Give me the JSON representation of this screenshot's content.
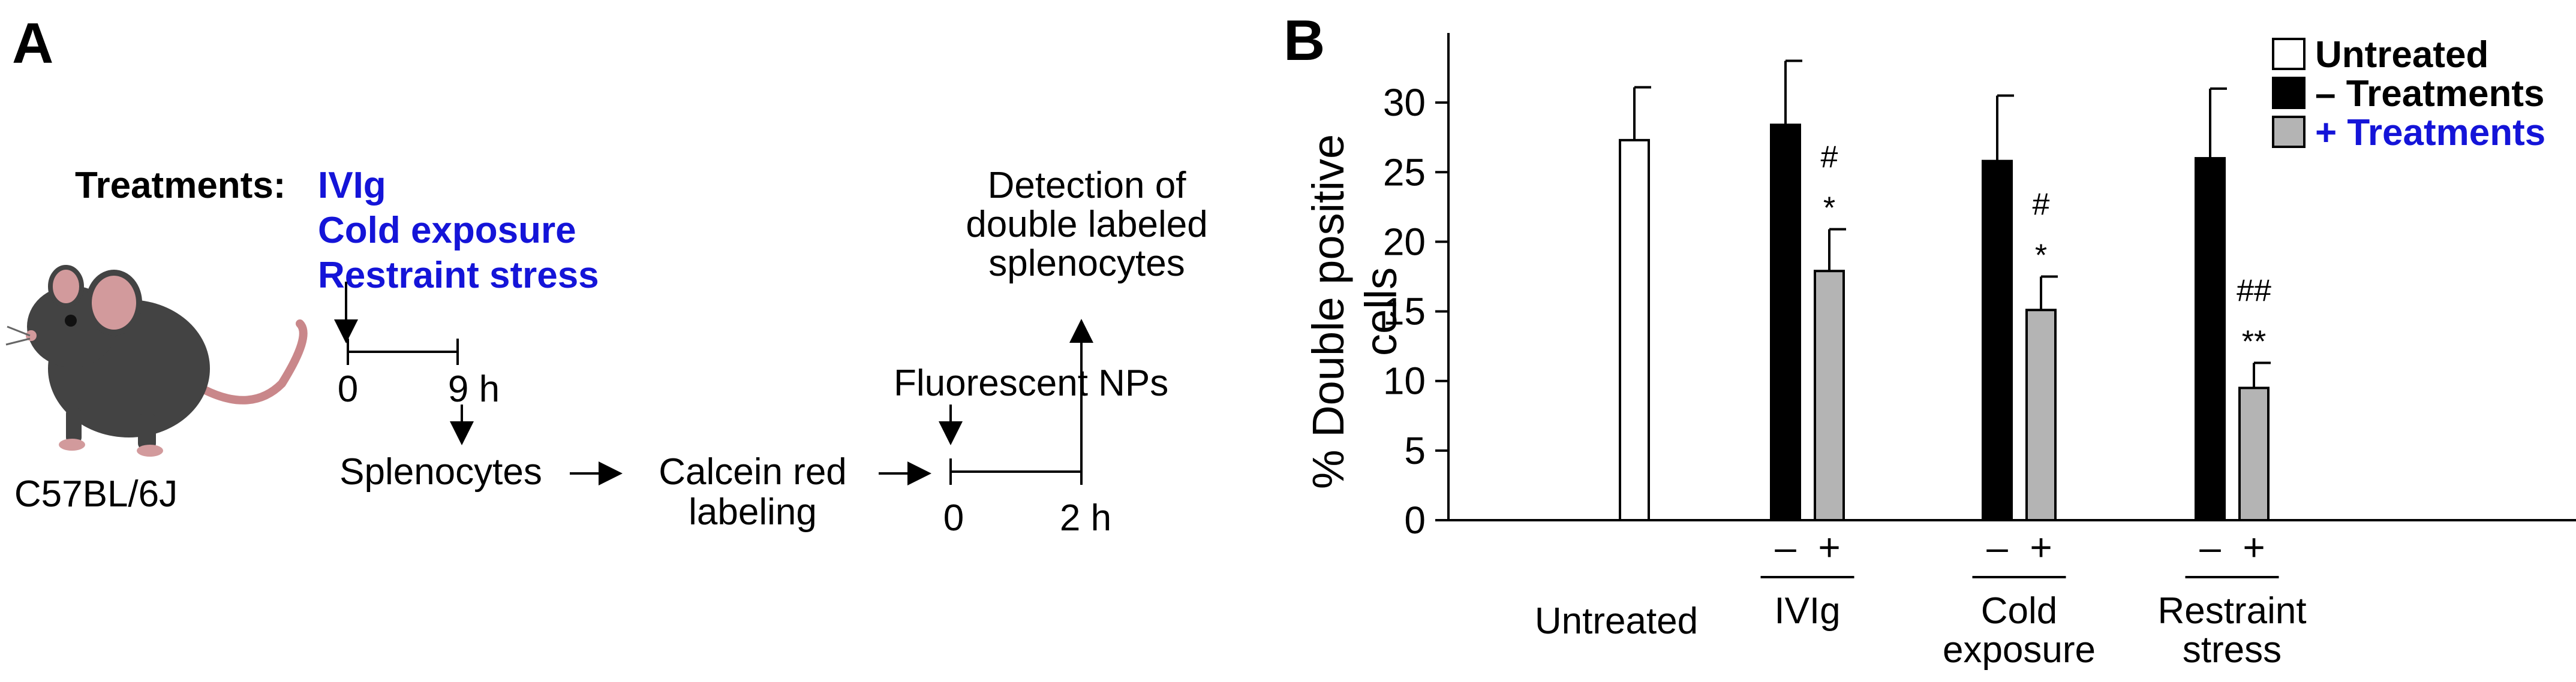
{
  "panel_a": {
    "letter": "A",
    "treatments_label": "Treatments:",
    "treatments": [
      "IVIg",
      "Cold exposure",
      "Restraint stress"
    ],
    "mouse_strain": "C57BL/6J",
    "timeline1": {
      "start": "0",
      "end": "9 h"
    },
    "step_splenocytes": "Splenocytes",
    "step_labeling_line1": "Calcein red",
    "step_labeling_line2": "labeling",
    "nps_label": "Fluorescent NPs",
    "timeline2": {
      "start": "0",
      "end": "2 h"
    },
    "detection_lines": [
      "Detection of",
      "double labeled",
      "splenocytes"
    ]
  },
  "panel_b": {
    "letter": "B",
    "ylabel_line1": "% Double positive",
    "ylabel_line2": "cells",
    "legend": [
      {
        "label": "Untreated",
        "color": "#ffffff"
      },
      {
        "label": "–  Treatments",
        "color": "#000000"
      },
      {
        "label": "+ Treatments",
        "color": "#b4b4b4"
      }
    ],
    "minus_sign": "–",
    "plus_sign": "+"
  },
  "chart_data": {
    "type": "bar",
    "ylim": [
      0,
      35
    ],
    "yticks": [
      0,
      5,
      10,
      15,
      20,
      25,
      30
    ],
    "groups": [
      {
        "label_lines": [
          "Untreated"
        ],
        "bars": [
          {
            "series": "Untreated",
            "value": 27.3,
            "error": 3.8,
            "sig": []
          }
        ]
      },
      {
        "label_lines": [
          "IVIg"
        ],
        "bars": [
          {
            "series": "– Treatments",
            "value": 28.4,
            "error": 4.6,
            "sig": []
          },
          {
            "series": "+ Treatments",
            "value": 17.9,
            "error": 3.0,
            "sig": [
              "#",
              "*"
            ]
          }
        ]
      },
      {
        "label_lines": [
          "Cold",
          "exposure"
        ],
        "bars": [
          {
            "series": "– Treatments",
            "value": 25.8,
            "error": 4.7,
            "sig": []
          },
          {
            "series": "+ Treatments",
            "value": 15.1,
            "error": 2.4,
            "sig": [
              "#",
              "*"
            ]
          }
        ]
      },
      {
        "label_lines": [
          "Restraint",
          "stress"
        ],
        "bars": [
          {
            "series": "– Treatments",
            "value": 26.0,
            "error": 5.0,
            "sig": []
          },
          {
            "series": "+ Treatments",
            "value": 9.5,
            "error": 1.8,
            "sig": [
              "##",
              "**"
            ]
          }
        ]
      }
    ]
  }
}
